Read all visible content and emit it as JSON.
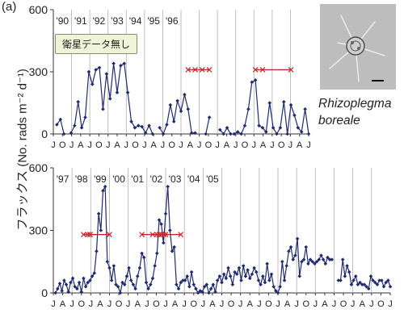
{
  "panel_label": "(a)",
  "ylabel": "フラックス (No. rads  m⁻² d⁻¹)",
  "nodata_label": "衛星データ無し",
  "species": {
    "genus": "Rhizoplegma",
    "epithet": "boreale"
  },
  "colors": {
    "line": "#1f2b6e",
    "arrow": "#c0282d",
    "grid": "#b0b0b0",
    "axis": "#333333"
  },
  "chart_data": [
    {
      "type": "line",
      "ylim": [
        0,
        600
      ],
      "yticks": [
        0,
        300,
        600
      ],
      "month_labels": [
        "J",
        "O",
        "J",
        "A",
        "J",
        "O",
        "J",
        "A",
        "J",
        "O",
        "J",
        "A",
        "J",
        "O",
        "J",
        "A",
        "J",
        "O",
        "J",
        "A",
        "J",
        "O",
        "J",
        "A",
        "J",
        "O",
        "J",
        "A",
        "J"
      ],
      "year_labels": [
        "'90",
        "'91",
        "'92",
        "'93",
        "'94",
        "'95",
        "'96"
      ],
      "values": [
        null,
        45,
        70,
        0,
        null,
        5,
        40,
        155,
        30,
        80,
        300,
        240,
        310,
        320,
        120,
        290,
        170,
        340,
        200,
        330,
        340,
        200,
        60,
        30,
        40,
        35,
        5,
        40,
        0,
        null,
        30,
        0,
        45,
        140,
        60,
        160,
        110,
        190,
        120,
        5,
        5,
        null,
        null,
        0,
        80,
        null,
        null,
        20,
        0,
        30,
        0,
        0,
        10,
        0,
        40,
        120,
        250,
        260,
        40,
        30,
        10,
        150,
        30,
        0,
        30,
        155,
        0,
        140,
        90,
        30,
        10,
        120,
        0
      ],
      "arrows": [
        {
          "start": 38,
          "end": 44,
          "stops": [
            40,
            42
          ]
        },
        {
          "start": 57,
          "end": 67,
          "stops": [
            59
          ]
        }
      ]
    },
    {
      "type": "line",
      "ylim": [
        0,
        600
      ],
      "yticks": [
        0,
        300,
        600
      ],
      "month_labels": [
        "J",
        "A",
        "J",
        "O",
        "J",
        "A",
        "J",
        "O",
        "J",
        "A",
        "J",
        "O",
        "J",
        "A",
        "J",
        "O",
        "J",
        "A",
        "J",
        "O",
        "J",
        "A",
        "J",
        "O",
        "J",
        "A",
        "J",
        "O",
        "J",
        "A",
        "J",
        "O",
        "J",
        "A",
        "J",
        "O",
        "J"
      ],
      "year_labels": [
        "'97",
        "'98",
        "'99",
        "'00",
        "'01",
        "'02",
        "'03",
        "'04",
        "'05"
      ],
      "values": [
        null,
        0,
        20,
        45,
        10,
        60,
        40,
        5,
        50,
        70,
        30,
        20,
        50,
        5,
        70,
        30,
        50,
        60,
        80,
        95,
        200,
        380,
        300,
        490,
        510,
        150,
        120,
        60,
        130,
        40,
        30,
        0,
        50,
        40,
        80,
        120,
        60,
        40,
        20,
        80,
        120,
        190,
        170,
        50,
        20,
        40,
        70,
        130,
        190,
        350,
        330,
        240,
        380,
        510,
        300,
        200,
        220,
        40,
        20,
        50,
        60,
        60,
        80,
        30,
        100,
        40,
        20,
        0,
        10,
        5,
        30,
        40,
        0,
        20,
        40,
        5,
        60,
        80,
        50,
        90,
        70,
        120,
        80,
        40,
        100,
        90,
        120,
        60,
        130,
        80,
        110,
        70,
        90,
        120,
        100,
        60,
        40,
        80,
        50,
        140,
        60,
        90,
        30,
        10,
        0,
        30,
        150,
        60,
        130,
        200,
        220,
        160,
        180,
        260,
        80,
        150,
        160,
        220,
        140,
        160,
        150,
        140,
        150,
        160,
        180,
        160,
        140,
        170,
        160,
        160,
        null,
        null,
        60,
        60,
        160,
        80,
        130,
        100,
        40,
        60,
        80,
        40,
        50,
        40,
        40,
        30,
        20,
        80,
        60,
        50,
        40,
        60,
        60,
        30,
        50,
        60,
        30
      ]
    }
  ]
}
